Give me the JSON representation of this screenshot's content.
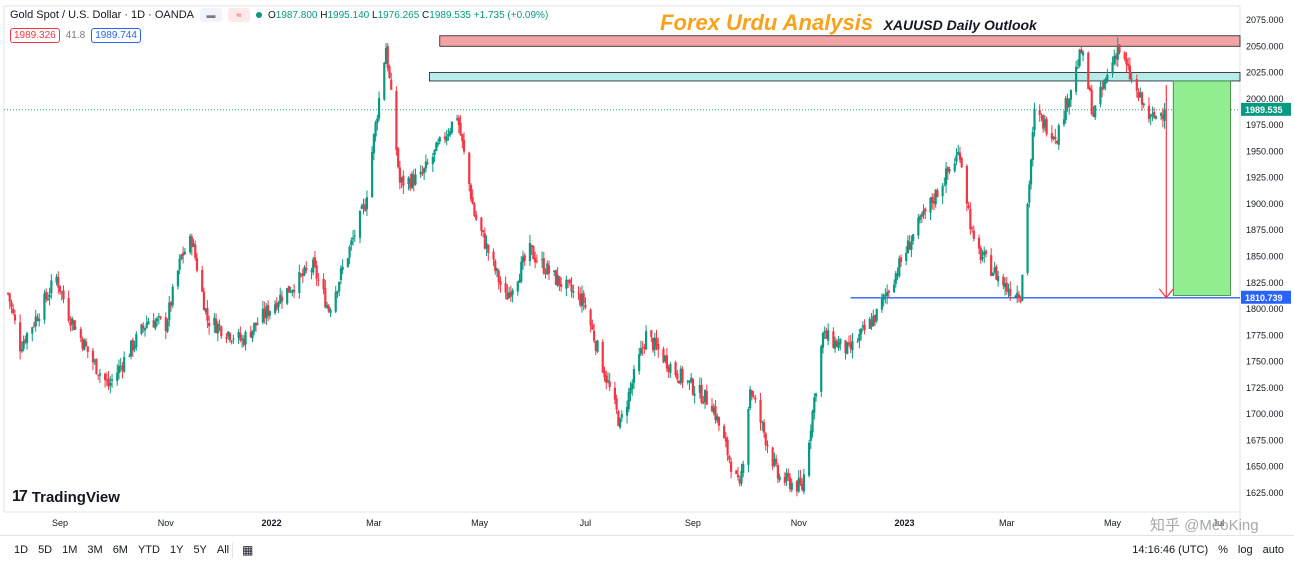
{
  "header": {
    "symbol": "Gold Spot / U.S. Dollar · 1D · OANDA",
    "ohlc": {
      "open": "1987.800",
      "high": "1995.140",
      "low": "1976.265",
      "close": "1989.535",
      "change": "+1.735 (+0.09%)"
    },
    "sell_price": "1989.326",
    "spread": "41.8",
    "buy_price": "1989.744"
  },
  "banner": {
    "title": "Forex Urdu Analysis",
    "subtitle": "XAUUSD Daily Outlook"
  },
  "logo": {
    "text": "TradingView",
    "icon": "tradingview-logo-icon"
  },
  "watermark": "知乎 @MeoKing",
  "bottom_bar": {
    "ranges": [
      "1D",
      "5D",
      "1M",
      "3M",
      "6M",
      "YTD",
      "1Y",
      "5Y",
      "All"
    ],
    "calendar_icon": "calendar-icon",
    "time": "14:16:46 (UTC)",
    "percent_label": "%",
    "log_label": "log",
    "auto_label": "auto"
  },
  "colors": {
    "up": "#089981",
    "down": "#f23645",
    "resistance_zone": "#f4a3a3",
    "demand_zone": "#b7ece8",
    "target_box": "#90ee90",
    "support_line": "#2962ff",
    "banner": "#f7a21b"
  },
  "chart_data": {
    "type": "candlestick",
    "symbol": "XAUUSD",
    "timeframe": "1D",
    "y_ticks": [
      2075,
      2050,
      2025,
      2000,
      1975,
      1950,
      1925,
      1900,
      1875,
      1850,
      1825,
      1800,
      1775,
      1750,
      1725,
      1700,
      1675,
      1650,
      1625
    ],
    "ylim": [
      1609,
      2084
    ],
    "x_labels": [
      "Sep",
      "Nov",
      "2022",
      "Mar",
      "May",
      "Jul",
      "Sep",
      "Nov",
      "2023",
      "Mar",
      "May",
      "Jul"
    ],
    "x_range": [
      "2021-08-02",
      "2023-07-21"
    ],
    "series": [
      {
        "date": "2021-08-02",
        "close": 1815
      },
      {
        "date": "2021-08-09",
        "close": 1765
      },
      {
        "date": "2021-08-16",
        "close": 1785
      },
      {
        "date": "2021-08-30",
        "close": 1830
      },
      {
        "date": "2021-09-06",
        "close": 1795
      },
      {
        "date": "2021-09-20",
        "close": 1750
      },
      {
        "date": "2021-09-29",
        "close": 1727
      },
      {
        "date": "2021-10-11",
        "close": 1760
      },
      {
        "date": "2021-10-22",
        "close": 1790
      },
      {
        "date": "2021-11-01",
        "close": 1785
      },
      {
        "date": "2021-11-10",
        "close": 1850
      },
      {
        "date": "2021-11-16",
        "close": 1866
      },
      {
        "date": "2021-11-25",
        "close": 1790
      },
      {
        "date": "2021-12-15",
        "close": 1770
      },
      {
        "date": "2022-01-05",
        "close": 1810
      },
      {
        "date": "2022-01-25",
        "close": 1840
      },
      {
        "date": "2022-02-03",
        "close": 1800
      },
      {
        "date": "2022-02-24",
        "close": 1900
      },
      {
        "date": "2022-03-08",
        "close": 2050
      },
      {
        "date": "2022-03-16",
        "close": 1920
      },
      {
        "date": "2022-03-28",
        "close": 1925
      },
      {
        "date": "2022-04-18",
        "close": 1985
      },
      {
        "date": "2022-04-28",
        "close": 1890
      },
      {
        "date": "2022-05-16",
        "close": 1810
      },
      {
        "date": "2022-05-30",
        "close": 1855
      },
      {
        "date": "2022-06-13",
        "close": 1830
      },
      {
        "date": "2022-06-30",
        "close": 1807
      },
      {
        "date": "2022-07-21",
        "close": 1690
      },
      {
        "date": "2022-08-05",
        "close": 1775
      },
      {
        "date": "2022-08-22",
        "close": 1740
      },
      {
        "date": "2022-09-12",
        "close": 1710
      },
      {
        "date": "2022-09-28",
        "close": 1627
      },
      {
        "date": "2022-10-04",
        "close": 1725
      },
      {
        "date": "2022-10-20",
        "close": 1640
      },
      {
        "date": "2022-11-03",
        "close": 1630
      },
      {
        "date": "2022-11-15",
        "close": 1775
      },
      {
        "date": "2022-11-30",
        "close": 1760
      },
      {
        "date": "2022-12-16",
        "close": 1795
      },
      {
        "date": "2023-01-06",
        "close": 1870
      },
      {
        "date": "2023-01-26",
        "close": 1930
      },
      {
        "date": "2023-02-02",
        "close": 1950
      },
      {
        "date": "2023-02-10",
        "close": 1860
      },
      {
        "date": "2023-03-01",
        "close": 1820
      },
      {
        "date": "2023-03-09",
        "close": 1815
      },
      {
        "date": "2023-03-17",
        "close": 1985
      },
      {
        "date": "2023-03-30",
        "close": 1965
      },
      {
        "date": "2023-04-13",
        "close": 2045
      },
      {
        "date": "2023-04-20",
        "close": 1985
      },
      {
        "date": "2023-05-04",
        "close": 2050
      },
      {
        "date": "2023-05-15",
        "close": 2005
      },
      {
        "date": "2023-05-23",
        "close": 1980
      },
      {
        "date": "2023-05-31",
        "close": 1989.535
      }
    ],
    "resistance_zone": [
      2050,
      2060
    ],
    "demand_zone": [
      2017,
      2025
    ],
    "support_level": 1810.739,
    "current_price": 1989.535,
    "target_box": {
      "from_date": "2023-06-05",
      "to_date": "2023-07-08",
      "top": 2017,
      "bottom": 1813
    },
    "projection_arrow": {
      "date": "2023-06-01",
      "from": 2013,
      "to": 1810.739
    }
  }
}
